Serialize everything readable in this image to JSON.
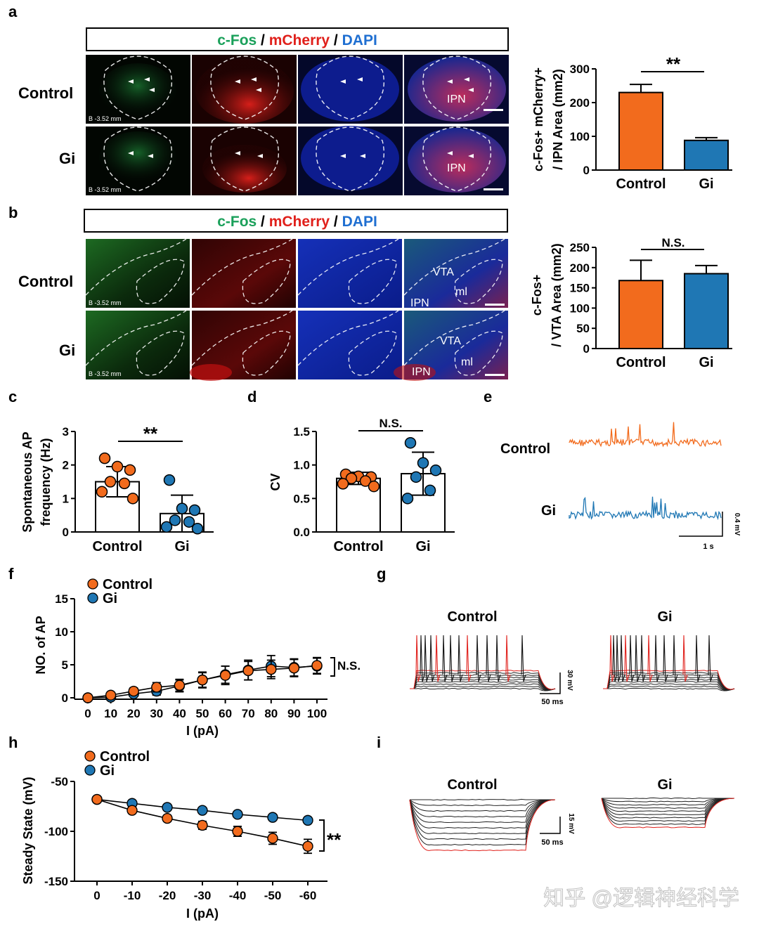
{
  "panel_letters": {
    "a": "a",
    "b": "b",
    "c": "c",
    "d": "d",
    "e": "e",
    "f": "f",
    "g": "g",
    "h": "h",
    "i": "i"
  },
  "stain_header": {
    "cfos": "c-Fos",
    "mcherry": "mCherry",
    "dapi": "DAPI",
    "slash": " / "
  },
  "group_labels": {
    "control": "Control",
    "gi": "Gi"
  },
  "colors": {
    "control": "#f26b1d",
    "gi": "#1f77b4",
    "cfos_green": "#1aa05a",
    "mcherry_red": "#e0201b",
    "dapi_blue": "#1f6fd1"
  },
  "micro": {
    "bregma": "B -3.52 mm",
    "ipn": "IPN",
    "vta": "VTA",
    "ml": "ml"
  },
  "trace_e": {
    "scale_v": "0.4 mV",
    "scale_t": "1 s"
  },
  "trace_g": {
    "title_control": "Control",
    "title_gi": "Gi",
    "scale_v": "30 mV",
    "scale_t": "50 ms"
  },
  "trace_i": {
    "title_control": "Control",
    "title_gi": "Gi",
    "scale_v": "15 mV",
    "scale_t": "50 ms"
  },
  "watermark": "知乎 @逻辑神经科学",
  "chart_data": [
    {
      "id": "a",
      "type": "bar",
      "categories": [
        "Control",
        "Gi"
      ],
      "values": [
        230,
        88
      ],
      "errors": [
        24,
        8
      ],
      "ylabel_line1": "c-Fos+ mCherry+",
      "ylabel_line2": "/ IPN Area (mm2)",
      "ylim": [
        0,
        300
      ],
      "yticks": [
        "0",
        "100",
        "200",
        "300"
      ],
      "significance": "**"
    },
    {
      "id": "b",
      "type": "bar",
      "categories": [
        "Control",
        "Gi"
      ],
      "values": [
        168,
        185
      ],
      "errors": [
        50,
        20
      ],
      "ylabel_line1": "c-Fos+",
      "ylabel_line2": "/ VTA Area (mm2)",
      "ylim": [
        0,
        250
      ],
      "yticks": [
        "0",
        "50",
        "100",
        "150",
        "200",
        "250"
      ],
      "significance": "N.S."
    },
    {
      "id": "c",
      "type": "bar",
      "categories": [
        "Control",
        "Gi"
      ],
      "values": [
        1.5,
        0.55
      ],
      "errors": [
        0.45,
        0.55
      ],
      "points": [
        [
          2.2,
          1.95,
          1.85,
          1.5,
          1.45,
          1.2,
          1.0
        ],
        [
          1.55,
          0.7,
          0.65,
          0.35,
          0.3,
          0.15,
          0.1
        ]
      ],
      "ylabel_line1": "Spontaneous AP",
      "ylabel_line2": "frequency (Hz)",
      "ylim": [
        0,
        3
      ],
      "yticks": [
        "0",
        "1",
        "2",
        "3"
      ],
      "significance": "**"
    },
    {
      "id": "d",
      "type": "bar",
      "categories": [
        "Control",
        "Gi"
      ],
      "values": [
        0.8,
        0.87
      ],
      "errors": [
        0.09,
        0.32
      ],
      "points": [
        [
          0.86,
          0.83,
          0.82,
          0.8,
          0.76,
          0.72,
          0.68
        ],
        [
          1.33,
          1.03,
          0.92,
          0.82,
          0.62,
          0.5
        ]
      ],
      "ylabel_line1": "CV",
      "ylabel_line2": "",
      "ylim": [
        0,
        1.5
      ],
      "yticks": [
        "0.0",
        "0.5",
        "1.0",
        "1.5"
      ],
      "significance": "N.S."
    },
    {
      "id": "f",
      "type": "line",
      "x": [
        0,
        10,
        20,
        30,
        40,
        50,
        60,
        70,
        80,
        90,
        100
      ],
      "xticks": [
        "0",
        "10",
        "20",
        "30",
        "40",
        "50",
        "60",
        "70",
        "80",
        "90",
        "100"
      ],
      "series": [
        {
          "name": "Control",
          "values": [
            0,
            0.4,
            1.0,
            1.6,
            1.9,
            2.7,
            3.4,
            4.1,
            4.3,
            4.5,
            4.9
          ],
          "errors": [
            0,
            0.3,
            0.5,
            0.7,
            0.9,
            1.2,
            1.4,
            1.4,
            1.4,
            1.3,
            1.2
          ]
        },
        {
          "name": "Gi",
          "values": [
            0,
            0.1,
            0.6,
            1.0,
            1.8,
            2.7,
            3.5,
            4.2,
            4.8,
            4.6,
            4.8
          ],
          "errors": [
            0,
            0.2,
            0.4,
            0.6,
            0.9,
            1.1,
            1.3,
            1.5,
            1.6,
            1.3,
            1.2
          ]
        }
      ],
      "xlabel": "I (pA)",
      "ylabel": "NO. of  AP",
      "ylim": [
        0,
        15
      ],
      "yticks": [
        "0",
        "5",
        "10",
        "15"
      ],
      "significance": "N.S."
    },
    {
      "id": "h",
      "type": "line",
      "x": [
        0,
        -10,
        -20,
        -30,
        -40,
        -50,
        -60
      ],
      "xticks": [
        "0",
        "-10",
        "-20",
        "-30",
        "-40",
        "-50",
        "-60"
      ],
      "series": [
        {
          "name": "Control",
          "values": [
            -68,
            -79,
            -87,
            -94,
            -100,
            -107,
            -115
          ],
          "errors": [
            0,
            3,
            3,
            4,
            5,
            6,
            7
          ]
        },
        {
          "name": "Gi",
          "values": [
            -68,
            -72,
            -76,
            -79,
            -83,
            -86,
            -89
          ],
          "errors": [
            0,
            2,
            2,
            2,
            2,
            2,
            2
          ]
        }
      ],
      "xlabel": "I (pA)",
      "ylabel": "Steady State (mV)",
      "ylim": [
        -150,
        -50
      ],
      "yticks": [
        "-50",
        "-100",
        "-150"
      ],
      "significance": "**"
    }
  ]
}
